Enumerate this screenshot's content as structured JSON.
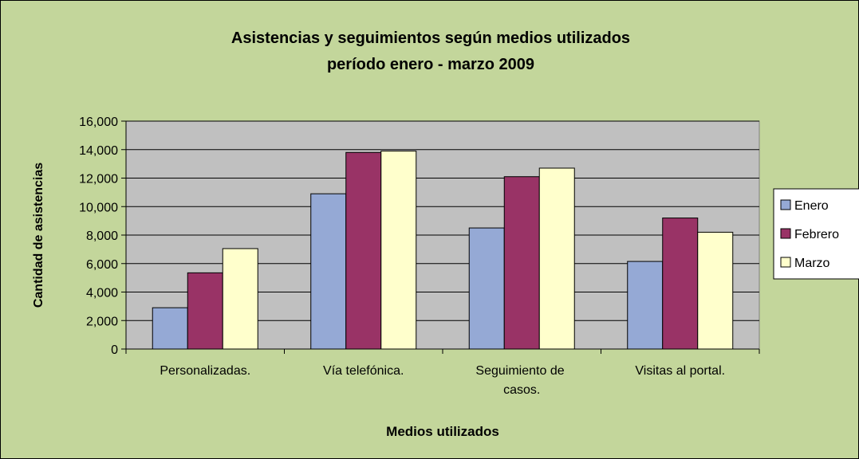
{
  "chart_data": {
    "type": "bar",
    "title": "Asistencias y seguimientos según medios utilizados",
    "subtitle": "período enero - marzo 2009",
    "x_label": "Medios utilizados",
    "y_label": "Cantidad de asistencias",
    "categories": [
      "Personalizadas.",
      "Vía telefónica.",
      "Seguimiento de casos.",
      "Visitas al portal."
    ],
    "series": [
      {
        "name": "Enero",
        "color": "#95a9d5",
        "values": [
          2900,
          10900,
          8500,
          6150
        ]
      },
      {
        "name": "Febrero",
        "color": "#993366",
        "values": [
          5350,
          13800,
          12100,
          9200
        ]
      },
      {
        "name": "Marzo",
        "color": "#ffffcc",
        "values": [
          7050,
          13900,
          12700,
          8200
        ]
      }
    ],
    "ylim": [
      0,
      16000
    ],
    "yticks": [
      0,
      {
        "value": 2000,
        "label": "2,000"
      },
      {
        "value": 4000,
        "label": "4,000"
      },
      {
        "value": 6000,
        "label": "6,000"
      },
      {
        "value": 8000,
        "label": "8,000"
      },
      {
        "value": 10000,
        "label": "10,000"
      },
      {
        "value": 12000,
        "label": "12,000"
      },
      {
        "value": 14000,
        "label": "14,000"
      },
      {
        "value": 16000,
        "label": "16,000"
      }
    ],
    "grid": true,
    "legend": "right"
  }
}
